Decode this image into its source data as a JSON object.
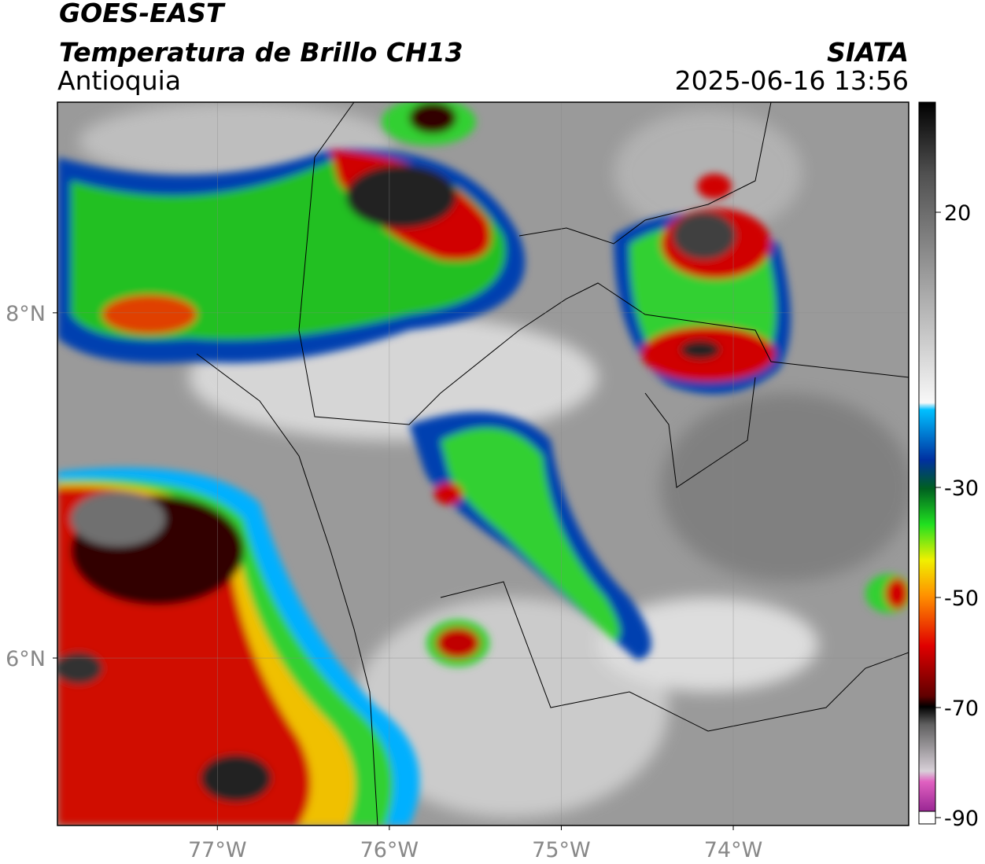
{
  "header": {
    "title": "GOES-EAST",
    "subtitle": "Temperatura de Brillo CH13",
    "region": "Antioquia",
    "source": "SIATA",
    "datetime": "2025-06-16 13:56"
  },
  "map": {
    "xlim": [
      -77.93,
      -72.98
    ],
    "ylim": [
      5.03,
      9.22
    ],
    "xticks": [
      {
        "value": -77,
        "label": "77°W"
      },
      {
        "value": -76,
        "label": "76°W"
      },
      {
        "value": -75,
        "label": "75°W"
      },
      {
        "value": -74,
        "label": "74°W"
      }
    ],
    "yticks": [
      {
        "value": 8,
        "label": "8°N"
      },
      {
        "value": 6,
        "label": "6°N"
      }
    ]
  },
  "colorbar": {
    "lim": [
      -90,
      40
    ],
    "ticks": [
      20,
      -30,
      -50,
      -70,
      -90
    ]
  }
}
